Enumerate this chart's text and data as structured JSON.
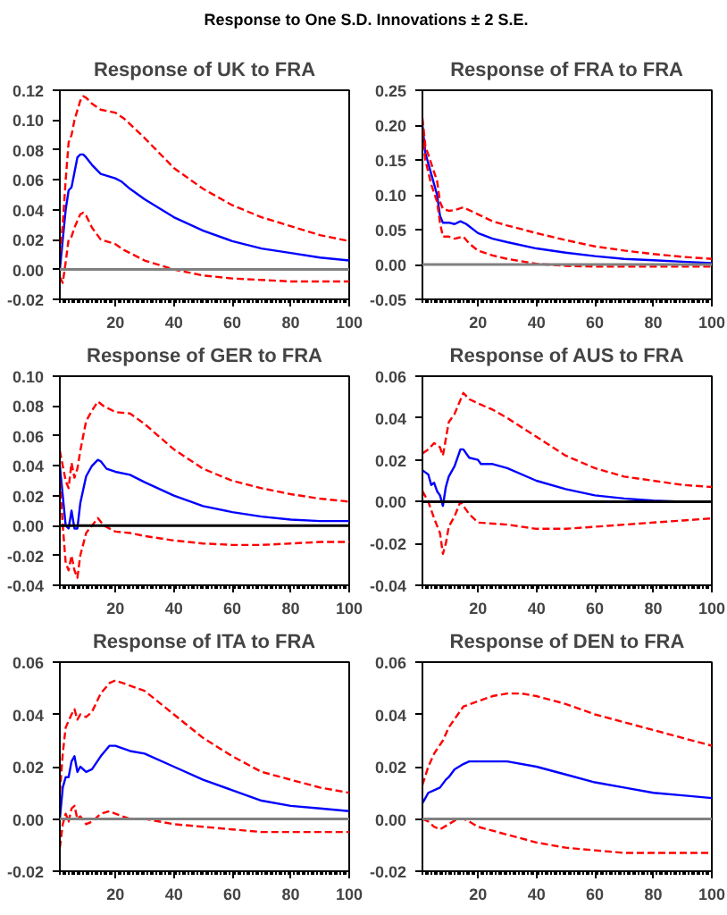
{
  "chart_data": [
    {
      "type": "line",
      "title": "Response of UK to FRA",
      "annotations": [
        "Response to One S.D. Innovations ± 2 S.E."
      ],
      "xlim": [
        1,
        100
      ],
      "xticks": [
        20,
        40,
        60,
        80,
        100
      ],
      "ylim": [
        -0.02,
        0.12
      ],
      "yticks": [
        {
          "value": -0.02,
          "label": "-0.02"
        },
        {
          "value": 0,
          "label": "0.00"
        },
        {
          "value": 0.02,
          "label": "0.02"
        },
        {
          "value": 0.04,
          "label": "0.04"
        },
        {
          "value": 0.06,
          "label": "0.06"
        },
        {
          "value": 0.08,
          "label": "0.08"
        },
        {
          "value": 0.1,
          "label": "0.10"
        },
        {
          "value": 0.12,
          "label": "0.12"
        }
      ],
      "ref_lines": [
        {
          "axis": "y",
          "value": 0,
          "color": "#808080"
        }
      ],
      "series": [
        {
          "color": "#0000ff",
          "line_style": "solid",
          "x": [
            1,
            2,
            3,
            4,
            5,
            6,
            7,
            8,
            9,
            10,
            12,
            15,
            20,
            22,
            25,
            30,
            40,
            50,
            60,
            70,
            80,
            90,
            100
          ],
          "values": [
            0,
            0.02,
            0.04,
            0.053,
            0.055,
            0.065,
            0.075,
            0.077,
            0.077,
            0.075,
            0.07,
            0.064,
            0.061,
            0.059,
            0.054,
            0.047,
            0.035,
            0.026,
            0.019,
            0.014,
            0.011,
            0.008,
            0.006
          ]
        },
        {
          "color": "#ff0000",
          "line_style": "dashed",
          "x": [
            1,
            2,
            3,
            4,
            5,
            6,
            8,
            9,
            10,
            12,
            15,
            20,
            23,
            30,
            40,
            50,
            60,
            70,
            80,
            90,
            100
          ],
          "values": [
            0.01,
            0.03,
            0.06,
            0.085,
            0.09,
            0.1,
            0.113,
            0.116,
            0.115,
            0.111,
            0.107,
            0.105,
            0.101,
            0.088,
            0.068,
            0.054,
            0.043,
            0.035,
            0.029,
            0.023,
            0.019
          ]
        },
        {
          "color": "#ff0000",
          "line_style": "dashed",
          "x": [
            1,
            2,
            3,
            4,
            5,
            6,
            8,
            9,
            10,
            12,
            15,
            20,
            23,
            30,
            40,
            50,
            60,
            70,
            80,
            90,
            100
          ],
          "values": [
            -0.005,
            -0.009,
            0.005,
            0.02,
            0.022,
            0.028,
            0.037,
            0.038,
            0.036,
            0.028,
            0.02,
            0.017,
            0.013,
            0.006,
            0,
            -0.004,
            -0.006,
            -0.007,
            -0.008,
            -0.008,
            -0.008
          ]
        }
      ]
    },
    {
      "type": "line",
      "title": "Response of FRA to FRA",
      "xlim": [
        1,
        100
      ],
      "xticks": [
        20,
        40,
        60,
        80,
        100
      ],
      "ylim": [
        -0.05,
        0.25
      ],
      "yticks": [
        {
          "value": -0.05,
          "label": "-0.05"
        },
        {
          "value": 0,
          "label": "0.00"
        },
        {
          "value": 0.05,
          "label": "0.05"
        },
        {
          "value": 0.1,
          "label": "0.10"
        },
        {
          "value": 0.15,
          "label": "0.15"
        },
        {
          "value": 0.2,
          "label": "0.20"
        },
        {
          "value": 0.25,
          "label": "0.25"
        }
      ],
      "ref_lines": [
        {
          "axis": "y",
          "value": 0,
          "color": "#808080"
        }
      ],
      "series": [
        {
          "color": "#0000ff",
          "line_style": "solid",
          "x": [
            1,
            2,
            4,
            6,
            7,
            8,
            10,
            12,
            14,
            16,
            20,
            25,
            30,
            40,
            50,
            60,
            70,
            80,
            90,
            100
          ],
          "values": [
            0.2,
            0.16,
            0.13,
            0.1,
            0.07,
            0.06,
            0.06,
            0.058,
            0.062,
            0.058,
            0.045,
            0.037,
            0.032,
            0.023,
            0.017,
            0.012,
            0.008,
            0.006,
            0.004,
            0.002
          ]
        },
        {
          "color": "#ff0000",
          "line_style": "dashed",
          "x": [
            1,
            2,
            4,
            6,
            7,
            8,
            10,
            12,
            15,
            20,
            25,
            30,
            40,
            50,
            60,
            70,
            80,
            90,
            100
          ],
          "values": [
            0.21,
            0.17,
            0.145,
            0.12,
            0.09,
            0.08,
            0.077,
            0.078,
            0.082,
            0.072,
            0.062,
            0.056,
            0.045,
            0.035,
            0.026,
            0.02,
            0.015,
            0.011,
            0.008
          ]
        },
        {
          "color": "#ff0000",
          "line_style": "dashed",
          "x": [
            1,
            2,
            4,
            6,
            7,
            8,
            10,
            12,
            15,
            17,
            20,
            25,
            30,
            40,
            50,
            60,
            70,
            80,
            90,
            100
          ],
          "values": [
            0.19,
            0.15,
            0.115,
            0.09,
            0.06,
            0.04,
            0.04,
            0.037,
            0.04,
            0.03,
            0.02,
            0.013,
            0.008,
            0.001,
            -0.002,
            -0.003,
            -0.003,
            -0.003,
            -0.003,
            -0.003
          ]
        }
      ]
    },
    {
      "type": "line",
      "title": "Response of GER to FRA",
      "xlim": [
        1,
        100
      ],
      "xticks": [
        20,
        40,
        60,
        80,
        100
      ],
      "ylim": [
        -0.04,
        0.1
      ],
      "yticks": [
        {
          "value": -0.04,
          "label": "-0.04"
        },
        {
          "value": -0.02,
          "label": "-0.02"
        },
        {
          "value": 0,
          "label": "0.00"
        },
        {
          "value": 0.02,
          "label": "0.02"
        },
        {
          "value": 0.04,
          "label": "0.04"
        },
        {
          "value": 0.06,
          "label": "0.06"
        },
        {
          "value": 0.08,
          "label": "0.08"
        },
        {
          "value": 0.1,
          "label": "0.10"
        }
      ],
      "ref_lines": [
        {
          "axis": "y",
          "value": 0,
          "color": "#000000"
        }
      ],
      "series": [
        {
          "color": "#0000ff",
          "line_style": "solid",
          "x": [
            1,
            2,
            3,
            4,
            5,
            6,
            7,
            8,
            10,
            12,
            14,
            15,
            17,
            20,
            25,
            30,
            40,
            50,
            60,
            70,
            80,
            90,
            100
          ],
          "values": [
            0.04,
            0.02,
            0,
            -0.002,
            0.01,
            -0.002,
            -0.002,
            0.015,
            0.033,
            0.04,
            0.044,
            0.043,
            0.038,
            0.036,
            0.034,
            0.029,
            0.02,
            0.013,
            0.009,
            0.006,
            0.004,
            0.003,
            0.003
          ]
        },
        {
          "color": "#ff0000",
          "line_style": "dashed",
          "x": [
            1,
            2,
            3,
            4,
            5,
            6,
            7,
            8,
            10,
            12,
            14,
            16,
            20,
            25,
            30,
            40,
            50,
            60,
            70,
            80,
            90,
            100
          ],
          "values": [
            0.05,
            0.04,
            0.03,
            0.025,
            0.042,
            0.032,
            0.038,
            0.05,
            0.07,
            0.077,
            0.083,
            0.08,
            0.076,
            0.075,
            0.068,
            0.051,
            0.038,
            0.03,
            0.025,
            0.021,
            0.018,
            0.016
          ]
        },
        {
          "color": "#ff0000",
          "line_style": "dashed",
          "x": [
            1,
            2,
            3,
            4,
            5,
            6,
            7,
            8,
            10,
            12,
            14,
            16,
            20,
            25,
            30,
            40,
            50,
            60,
            70,
            80,
            90,
            100
          ],
          "values": [
            0.03,
            0,
            -0.025,
            -0.03,
            -0.02,
            -0.03,
            -0.035,
            -0.02,
            -0.005,
            0,
            0.005,
            0,
            -0.004,
            -0.005,
            -0.007,
            -0.01,
            -0.012,
            -0.013,
            -0.013,
            -0.012,
            -0.011,
            -0.011
          ]
        }
      ]
    },
    {
      "type": "line",
      "title": "Response of AUS to FRA",
      "xlim": [
        1,
        100
      ],
      "xticks": [
        20,
        40,
        60,
        80,
        100
      ],
      "ylim": [
        -0.04,
        0.06
      ],
      "yticks": [
        {
          "value": -0.04,
          "label": "-0.04"
        },
        {
          "value": -0.02,
          "label": "-0.02"
        },
        {
          "value": 0,
          "label": "0.00"
        },
        {
          "value": 0.02,
          "label": "0.02"
        },
        {
          "value": 0.04,
          "label": "0.04"
        },
        {
          "value": 0.06,
          "label": "0.06"
        }
      ],
      "ref_lines": [
        {
          "axis": "y",
          "value": 0,
          "color": "#000000"
        }
      ],
      "series": [
        {
          "color": "#0000ff",
          "line_style": "solid",
          "x": [
            1,
            2,
            3,
            4,
            5,
            6,
            7,
            8,
            9,
            10,
            12,
            14,
            15,
            17,
            20,
            21,
            25,
            30,
            40,
            50,
            60,
            70,
            80,
            90,
            100
          ],
          "values": [
            0.015,
            0.014,
            0.013,
            0.008,
            0.009,
            0.005,
            0.003,
            -0.002,
            0.007,
            0.012,
            0.017,
            0.025,
            0.025,
            0.021,
            0.02,
            0.018,
            0.018,
            0.016,
            0.01,
            0.006,
            0.003,
            0.0015,
            0.0005,
            0,
            0
          ]
        },
        {
          "color": "#ff0000",
          "line_style": "dashed",
          "x": [
            1,
            3,
            5,
            7,
            8,
            10,
            12,
            15,
            17,
            20,
            25,
            30,
            40,
            50,
            60,
            70,
            80,
            90,
            100
          ],
          "values": [
            0.023,
            0.025,
            0.028,
            0.026,
            0.022,
            0.038,
            0.042,
            0.052,
            0.049,
            0.047,
            0.044,
            0.04,
            0.031,
            0.022,
            0.016,
            0.012,
            0.01,
            0.008,
            0.007
          ]
        },
        {
          "color": "#ff0000",
          "line_style": "dashed",
          "x": [
            1,
            3,
            5,
            7,
            8,
            9,
            10,
            12,
            14,
            15,
            17,
            20,
            30,
            40,
            50,
            60,
            70,
            80,
            90,
            100
          ],
          "values": [
            0.005,
            0,
            -0.008,
            -0.015,
            -0.025,
            -0.02,
            -0.012,
            -0.007,
            0,
            -0.002,
            -0.006,
            -0.01,
            -0.011,
            -0.013,
            -0.013,
            -0.012,
            -0.011,
            -0.01,
            -0.009,
            -0.008
          ]
        }
      ]
    },
    {
      "type": "line",
      "title": "Response of ITA to FRA",
      "xlim": [
        1,
        100
      ],
      "xticks": [
        20,
        40,
        60,
        80,
        100
      ],
      "ylim": [
        -0.02,
        0.06
      ],
      "yticks": [
        {
          "value": -0.02,
          "label": "-0.02"
        },
        {
          "value": 0,
          "label": "0.00"
        },
        {
          "value": 0.02,
          "label": "0.02"
        },
        {
          "value": 0.04,
          "label": "0.04"
        },
        {
          "value": 0.06,
          "label": "0.06"
        }
      ],
      "ref_lines": [
        {
          "axis": "y",
          "value": 0,
          "color": "#808080"
        }
      ],
      "series": [
        {
          "color": "#0000ff",
          "line_style": "solid",
          "x": [
            1,
            2,
            3,
            4,
            5,
            6,
            7,
            8,
            10,
            12,
            15,
            18,
            20,
            25,
            30,
            40,
            50,
            60,
            70,
            80,
            90,
            100
          ],
          "values": [
            0,
            0.012,
            0.016,
            0.016,
            0.022,
            0.024,
            0.018,
            0.02,
            0.018,
            0.019,
            0.024,
            0.028,
            0.028,
            0.026,
            0.025,
            0.02,
            0.015,
            0.011,
            0.007,
            0.005,
            0.004,
            0.003
          ]
        },
        {
          "color": "#ff0000",
          "line_style": "dashed",
          "x": [
            1,
            2,
            3,
            5,
            6,
            7,
            8,
            10,
            12,
            15,
            18,
            20,
            25,
            30,
            40,
            50,
            60,
            70,
            80,
            90,
            100
          ],
          "values": [
            0.01,
            0.025,
            0.035,
            0.04,
            0.042,
            0.038,
            0.04,
            0.039,
            0.041,
            0.048,
            0.052,
            0.053,
            0.051,
            0.049,
            0.04,
            0.031,
            0.024,
            0.018,
            0.015,
            0.012,
            0.01
          ]
        },
        {
          "color": "#ff0000",
          "line_style": "dashed",
          "x": [
            1,
            2,
            3,
            4,
            5,
            6,
            7,
            8,
            10,
            12,
            15,
            18,
            20,
            25,
            30,
            40,
            50,
            60,
            70,
            80,
            90,
            100
          ],
          "values": [
            -0.011,
            -0.002,
            0.002,
            -0.001,
            0.004,
            0.005,
            0,
            0.001,
            -0.002,
            -0.001,
            0.002,
            0.003,
            0.002,
            0,
            0,
            -0.002,
            -0.003,
            -0.004,
            -0.005,
            -0.005,
            -0.005,
            -0.005
          ]
        }
      ]
    },
    {
      "type": "line",
      "title": "Response of DEN to FRA",
      "xlim": [
        1,
        100
      ],
      "xticks": [
        20,
        40,
        60,
        80,
        100
      ],
      "ylim": [
        -0.02,
        0.06
      ],
      "yticks": [
        {
          "value": -0.02,
          "label": "-0.02"
        },
        {
          "value": 0,
          "label": "0.00"
        },
        {
          "value": 0.02,
          "label": "0.02"
        },
        {
          "value": 0.04,
          "label": "0.04"
        },
        {
          "value": 0.06,
          "label": "0.06"
        }
      ],
      "ref_lines": [
        {
          "axis": "y",
          "value": 0,
          "color": "#808080"
        }
      ],
      "series": [
        {
          "color": "#0000ff",
          "line_style": "solid",
          "x": [
            1,
            2,
            3,
            5,
            7,
            9,
            10,
            12,
            15,
            17,
            20,
            30,
            40,
            50,
            60,
            70,
            80,
            90,
            100
          ],
          "values": [
            0.006,
            0.008,
            0.01,
            0.011,
            0.012,
            0.015,
            0.016,
            0.019,
            0.021,
            0.022,
            0.022,
            0.022,
            0.02,
            0.017,
            0.014,
            0.012,
            0.01,
            0.009,
            0.008
          ]
        },
        {
          "color": "#ff0000",
          "line_style": "dashed",
          "x": [
            1,
            3,
            5,
            8,
            10,
            15,
            20,
            25,
            30,
            35,
            40,
            50,
            60,
            70,
            80,
            90,
            100
          ],
          "values": [
            0.013,
            0.02,
            0.025,
            0.03,
            0.035,
            0.043,
            0.045,
            0.047,
            0.048,
            0.048,
            0.047,
            0.044,
            0.04,
            0.037,
            0.034,
            0.031,
            0.028
          ]
        },
        {
          "color": "#ff0000",
          "line_style": "dashed",
          "x": [
            1,
            3,
            5,
            7,
            10,
            13,
            15,
            17,
            20,
            30,
            40,
            50,
            60,
            70,
            80,
            90,
            100
          ],
          "values": [
            0,
            -0.001,
            -0.003,
            -0.004,
            -0.002,
            0,
            0,
            -0.001,
            -0.003,
            -0.006,
            -0.009,
            -0.011,
            -0.012,
            -0.013,
            -0.013,
            -0.013,
            -0.013
          ]
        }
      ]
    }
  ]
}
